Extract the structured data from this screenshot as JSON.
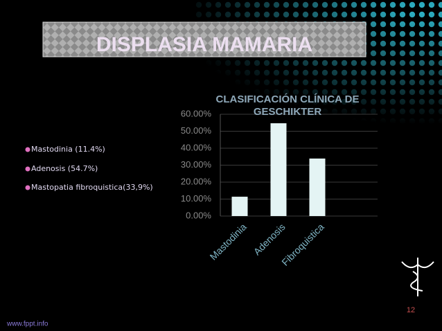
{
  "header": {
    "title": "DISPLASIA MAMARIA"
  },
  "bullets": [
    "Mastodinia (11.4%)",
    "Adenosis (54.7%)",
    "Mastopatia fibroquistica(33,9%)"
  ],
  "chart_data": {
    "type": "bar",
    "title": "CLASIFICACIÓN CLÍNICA DE GESCHIKTER",
    "categories": [
      "Mastodinia",
      "Adenosis",
      "Fibroquistica"
    ],
    "values": [
      11.4,
      54.7,
      33.9
    ],
    "color": "#e4f4f4",
    "ylim": [
      0,
      60
    ],
    "yticks": [
      {
        "value": 0,
        "label": "0.00%"
      },
      {
        "value": 10,
        "label": "10.00%"
      },
      {
        "value": 20,
        "label": "20.00%"
      },
      {
        "value": 30,
        "label": "30.00%"
      },
      {
        "value": 40,
        "label": "40.00%"
      },
      {
        "value": 50,
        "label": "50.00%"
      },
      {
        "value": 60,
        "label": "60.00%"
      }
    ],
    "grid": true
  },
  "page_number": "12",
  "footer": "www.fppt.info"
}
